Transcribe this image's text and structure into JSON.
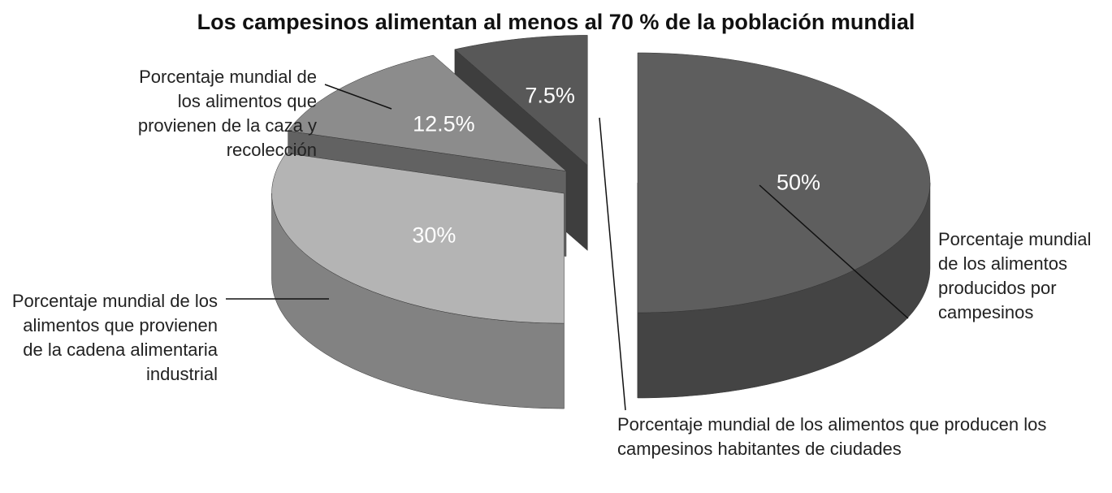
{
  "chart_data": {
    "type": "pie",
    "title": "Los campesinos alimentan al menos al 70 % de la población mundial",
    "categories": [
      "Porcentaje mundial de los alimentos producidos por campesinos",
      "Porcentaje mundial de los alimentos que provienen de la cadena alimentaria industrial",
      "Porcentaje mundial de los alimentos que provienen de la caza y recolección",
      "Porcentaje mundial de los alimentos que producen los campesinos habitantes de ciudades"
    ],
    "values": [
      50,
      30,
      12.5,
      7.5
    ],
    "value_labels": [
      "50%",
      "30%",
      "12.5%",
      "7.5%"
    ],
    "colors": [
      "#5e5e5e",
      "#b4b4b4",
      "#8c8c8c",
      "#585858"
    ]
  }
}
